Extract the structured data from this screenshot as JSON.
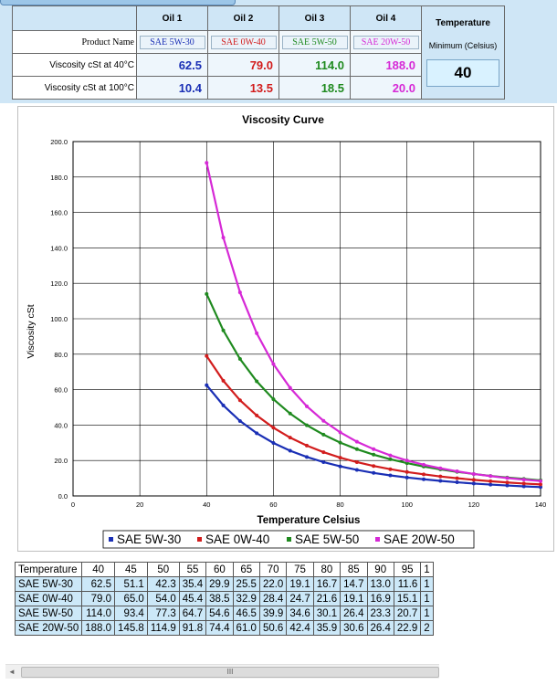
{
  "top_panel": {
    "oil_headers": [
      "Oil 1",
      "Oil 2",
      "Oil 3",
      "Oil 4"
    ],
    "product_name_label": "Product Name",
    "product_names": [
      "SAE 5W-30",
      "SAE 0W-40",
      "SAE 5W-50",
      "SAE 20W-50"
    ],
    "visc40_label": "Viscosity cSt at 40°C",
    "visc40_values": [
      "62.5",
      "79.0",
      "114.0",
      "188.0"
    ],
    "visc100_label": "Viscosity cSt at 100°C",
    "visc100_values": [
      "10.4",
      "13.5",
      "18.5",
      "20.0"
    ],
    "temperature_title": "Temperature",
    "temperature_subtitle": "Minimum (Celsius)",
    "temperature_value": "40",
    "oil_colors": [
      "#1a2fb5",
      "#d21d1d",
      "#1f8a1f",
      "#d629d6"
    ]
  },
  "chart_data": {
    "type": "line",
    "title": "Viscosity Curve",
    "xlabel": "Temperature Celsius",
    "ylabel": "Viscosity cSt",
    "xlim": [
      0,
      140
    ],
    "ylim": [
      0,
      200
    ],
    "x_ticks": [
      "0",
      "20",
      "40",
      "60",
      "80",
      "100",
      "120",
      "140"
    ],
    "y_ticks": [
      "0.0",
      "20.0",
      "40.0",
      "60.0",
      "80.0",
      "100.0",
      "120.0",
      "140.0",
      "160.0",
      "180.0",
      "200.0"
    ],
    "grid": true,
    "legend_position": "bottom",
    "x": [
      40,
      45,
      50,
      55,
      60,
      65,
      70,
      75,
      80,
      85,
      90,
      95,
      100,
      105,
      110,
      115,
      120,
      125,
      130,
      135,
      140
    ],
    "series": [
      {
        "name": "SAE 5W-30",
        "color": "#1a2fb5",
        "values": [
          62.5,
          51.1,
          42.3,
          35.4,
          29.9,
          25.5,
          22.0,
          19.1,
          16.7,
          14.7,
          13.0,
          11.6,
          10.4,
          9.4,
          8.5,
          7.7,
          7.0,
          6.4,
          5.9,
          5.4,
          5.0
        ]
      },
      {
        "name": "SAE 0W-40",
        "color": "#d21d1d",
        "values": [
          79.0,
          65.0,
          54.0,
          45.4,
          38.5,
          32.9,
          28.4,
          24.7,
          21.6,
          19.1,
          16.9,
          15.1,
          13.5,
          12.2,
          11.0,
          10.0,
          9.1,
          8.3,
          7.6,
          7.0,
          6.5
        ]
      },
      {
        "name": "SAE 5W-50",
        "color": "#1f8a1f",
        "values": [
          114.0,
          93.4,
          77.3,
          64.7,
          54.6,
          46.5,
          39.9,
          34.6,
          30.1,
          26.4,
          23.3,
          20.7,
          18.5,
          16.6,
          15.0,
          13.6,
          12.4,
          11.3,
          10.4,
          9.6,
          8.8
        ]
      },
      {
        "name": "SAE 20W-50",
        "color": "#d629d6",
        "values": [
          188.0,
          145.8,
          114.9,
          91.8,
          74.4,
          61.0,
          50.6,
          42.4,
          35.9,
          30.6,
          26.4,
          22.9,
          20.0,
          17.6,
          15.6,
          13.9,
          12.4,
          11.2,
          10.1,
          9.2,
          8.4
        ]
      }
    ]
  },
  "data_table": {
    "header_label": "Temperature",
    "temperatures": [
      "40",
      "45",
      "50",
      "55",
      "60",
      "65",
      "70",
      "75",
      "80",
      "85",
      "90",
      "95",
      "1"
    ],
    "rows": [
      {
        "name": "SAE 5W-30",
        "values": [
          "62.5",
          "51.1",
          "42.3",
          "35.4",
          "29.9",
          "25.5",
          "22.0",
          "19.1",
          "16.7",
          "14.7",
          "13.0",
          "11.6",
          "1"
        ]
      },
      {
        "name": "SAE 0W-40",
        "values": [
          "79.0",
          "65.0",
          "54.0",
          "45.4",
          "38.5",
          "32.9",
          "28.4",
          "24.7",
          "21.6",
          "19.1",
          "16.9",
          "15.1",
          "1"
        ]
      },
      {
        "name": "SAE 5W-50",
        "values": [
          "114.0",
          "93.4",
          "77.3",
          "64.7",
          "54.6",
          "46.5",
          "39.9",
          "34.6",
          "30.1",
          "26.4",
          "23.3",
          "20.7",
          "1"
        ]
      },
      {
        "name": "SAE 20W-50",
        "values": [
          "188.0",
          "145.8",
          "114.9",
          "91.8",
          "74.4",
          "61.0",
          "50.6",
          "42.4",
          "35.9",
          "30.6",
          "26.4",
          "22.9",
          "2"
        ]
      }
    ]
  },
  "scrollbar": {
    "left_arrow": "◄",
    "thumb_grip": "III"
  }
}
